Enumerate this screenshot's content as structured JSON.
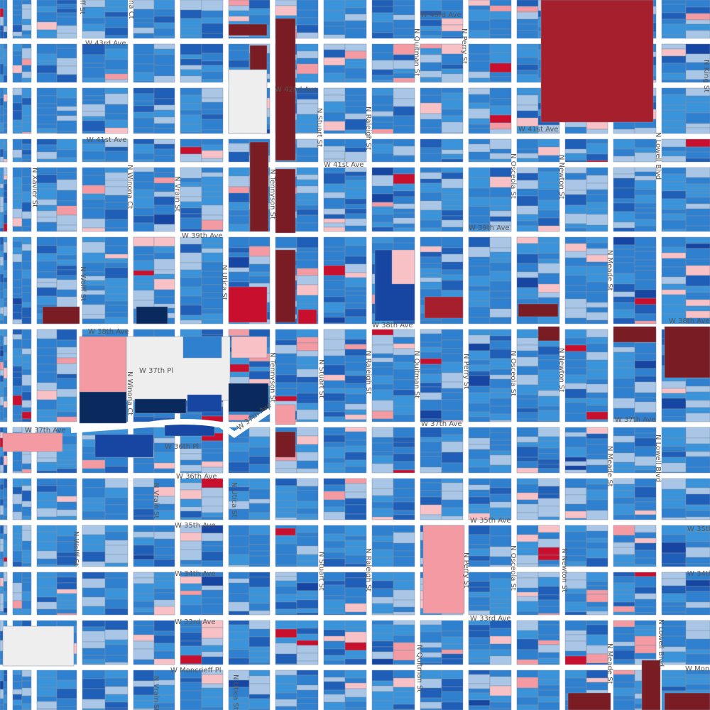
{
  "map": {
    "street_labels": [
      {
        "id": "w43rd-1",
        "text": "W 43rd Ave"
      },
      {
        "id": "w43rd-2",
        "text": "W 43rd Ave"
      },
      {
        "id": "w42nd",
        "text": "W 42nd Ave"
      },
      {
        "id": "w41st-1",
        "text": "W 41st Ave"
      },
      {
        "id": "w41st-2",
        "text": "W 41st Ave"
      },
      {
        "id": "w41st-3",
        "text": "W 41st Ave"
      },
      {
        "id": "w39th-1",
        "text": "W 39th Ave"
      },
      {
        "id": "w39th-2",
        "text": "W 39th Ave"
      },
      {
        "id": "w38th-1",
        "text": "W 38th Ave"
      },
      {
        "id": "w38th-2",
        "text": "W 38th Ave"
      },
      {
        "id": "w38th-3",
        "text": "W 38th Ave"
      },
      {
        "id": "w37thpl",
        "text": "W 37th Pl"
      },
      {
        "id": "w37th-1",
        "text": "W 37th Ave"
      },
      {
        "id": "w37th-2",
        "text": "W 37th Ave"
      },
      {
        "id": "w37th-3",
        "text": "W 37th Ave"
      },
      {
        "id": "w37th-4",
        "text": "W 37th Ave"
      },
      {
        "id": "w36thpl",
        "text": "W 36th Pl"
      },
      {
        "id": "w36th",
        "text": "W 36th Ave"
      },
      {
        "id": "w35th-1",
        "text": "W 35th Ave"
      },
      {
        "id": "w35th-2",
        "text": "W 35th Ave"
      },
      {
        "id": "w35th-3",
        "text": "W 35th"
      },
      {
        "id": "w34th-1",
        "text": "W 34th Ave"
      },
      {
        "id": "w34th-2",
        "text": "W 34th"
      },
      {
        "id": "w33rd-1",
        "text": "W 33rd Ave"
      },
      {
        "id": "w33rd-2",
        "text": "W 33rd Ave"
      },
      {
        "id": "moncrieff",
        "text": "W Moncrieff Pl"
      },
      {
        "id": "wmon",
        "text": "W Mon"
      },
      {
        "id": "xavier",
        "text": "N Xavier St"
      },
      {
        "id": "winona-1",
        "text": "N Winona Ct"
      },
      {
        "id": "winona-2",
        "text": "N Winona Ct"
      },
      {
        "id": "winona-top",
        "text": "na Ct"
      },
      {
        "id": "vrain-1",
        "text": "N Vrain St"
      },
      {
        "id": "vrain-2",
        "text": "N Vrain St"
      },
      {
        "id": "vrain-3",
        "text": "N Vrain St"
      },
      {
        "id": "wolff-1",
        "text": "N Wolff St"
      },
      {
        "id": "wolff-2",
        "text": "N Wolff St"
      },
      {
        "id": "wolff-top",
        "text": "ff St"
      },
      {
        "id": "utica-1",
        "text": "N Utica St"
      },
      {
        "id": "utica-2",
        "text": "N Utica St"
      },
      {
        "id": "utica-3",
        "text": "N Utica St"
      },
      {
        "id": "tennyson-1",
        "text": "N Tennyson St"
      },
      {
        "id": "tennyson-2",
        "text": "N Tennyson St"
      },
      {
        "id": "stuart-1",
        "text": "N Stuart St"
      },
      {
        "id": "stuart-2",
        "text": "N Stuart St"
      },
      {
        "id": "stuart-3",
        "text": "N Stuart St"
      },
      {
        "id": "raleigh-1",
        "text": "N Raleigh St"
      },
      {
        "id": "raleigh-2",
        "text": "N Raleigh St"
      },
      {
        "id": "raleigh-3",
        "text": "N Raleigh St"
      },
      {
        "id": "quitman-1",
        "text": "N Quitman St"
      },
      {
        "id": "quitman-2",
        "text": "N Quitman St"
      },
      {
        "id": "quitman-3",
        "text": "N Quitman St"
      },
      {
        "id": "perry-1",
        "text": "N Perry St"
      },
      {
        "id": "perry-2",
        "text": "N Perry St"
      },
      {
        "id": "perry-3",
        "text": "N Perry St"
      },
      {
        "id": "osceola-1",
        "text": "N Osceola St"
      },
      {
        "id": "osceola-2",
        "text": "N Osceola St"
      },
      {
        "id": "osceola-3",
        "text": "N Osceola St"
      },
      {
        "id": "newton-1",
        "text": "N Newton St"
      },
      {
        "id": "newton-2",
        "text": "N Newton St"
      },
      {
        "id": "newton-3",
        "text": "N Newton St"
      },
      {
        "id": "meade-1",
        "text": "N Meade St"
      },
      {
        "id": "meade-2",
        "text": "N Meade St"
      },
      {
        "id": "meade-3",
        "text": "N Meade St"
      },
      {
        "id": "lowell-1",
        "text": "N Lowell Blvd"
      },
      {
        "id": "lowell-2",
        "text": "N Lowell Blvd"
      },
      {
        "id": "lowell-3",
        "text": "N Lowell Blvd"
      },
      {
        "id": "king",
        "text": "N King St"
      }
    ],
    "colors": {
      "background": "#ffffff",
      "road": "#ffffff",
      "parcel_border": "#7f8fa6",
      "blue_light": "#a9c6e6",
      "blue_mid": "#3b93d9",
      "blue_std": "#2f80cf",
      "blue_dark": "#1f5fb8",
      "blue_navy": "#0a2a5e",
      "blue_deep": "#1746a2",
      "red_dark": "#7a1c24",
      "red": "#c8102e",
      "red_crimson": "#a51f2d",
      "pink": "#f39aa3",
      "pink_light": "#f7c1c6",
      "gray": "#eeeeee"
    }
  }
}
